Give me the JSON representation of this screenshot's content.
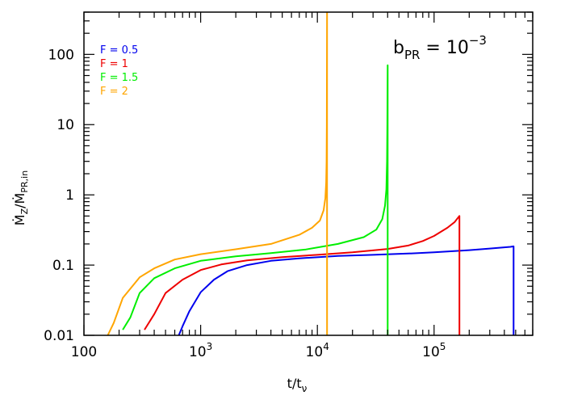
{
  "chart_data": {
    "type": "line",
    "xscale": "log",
    "yscale": "log",
    "xlim": [
      100,
      700000
    ],
    "ylim": [
      0.01,
      400
    ],
    "xlabel": {
      "base": "t/t",
      "sub": "ν"
    },
    "ylabel": {
      "base": "Ṁ",
      "sub1": "Z",
      "mid": "/Ṁ",
      "sub2": "PR,in"
    },
    "annotation": {
      "base": "b",
      "sub": "PR",
      "eq": " = 10",
      "sup": "−3"
    },
    "grid": false,
    "legend_position": "top-left",
    "x_ticks": [
      {
        "value": 100,
        "base": "100",
        "exp": ""
      },
      {
        "value": 1000,
        "base": "10",
        "exp": "3"
      },
      {
        "value": 10000,
        "base": "10",
        "exp": "4"
      },
      {
        "value": 100000,
        "base": "10",
        "exp": "5"
      }
    ],
    "y_ticks": [
      {
        "value": 0.01,
        "label": "0.01"
      },
      {
        "value": 0.1,
        "label": "0.1"
      },
      {
        "value": 1,
        "label": "1"
      },
      {
        "value": 10,
        "label": "10"
      },
      {
        "value": 100,
        "label": "100"
      }
    ],
    "series": [
      {
        "name": "F = 0.5",
        "color": "#0000ee",
        "points": [
          [
            650,
            0.01
          ],
          [
            700,
            0.0135
          ],
          [
            800,
            0.022
          ],
          [
            1000,
            0.041
          ],
          [
            1300,
            0.062
          ],
          [
            1700,
            0.082
          ],
          [
            2500,
            0.1
          ],
          [
            4000,
            0.115
          ],
          [
            7000,
            0.125
          ],
          [
            15000,
            0.135
          ],
          [
            30000,
            0.14
          ],
          [
            60000,
            0.146
          ],
          [
            100000,
            0.152
          ],
          [
            200000,
            0.163
          ],
          [
            300000,
            0.172
          ],
          [
            450000,
            0.182
          ],
          [
            480000,
            0.185
          ],
          [
            480000,
            0.01
          ]
        ]
      },
      {
        "name": "F = 1",
        "color": "#ee0000",
        "points": [
          [
            330,
            0.012
          ],
          [
            400,
            0.02
          ],
          [
            500,
            0.04
          ],
          [
            700,
            0.062
          ],
          [
            1000,
            0.085
          ],
          [
            1500,
            0.102
          ],
          [
            2500,
            0.117
          ],
          [
            5000,
            0.13
          ],
          [
            10000,
            0.14
          ],
          [
            20000,
            0.152
          ],
          [
            40000,
            0.17
          ],
          [
            60000,
            0.19
          ],
          [
            80000,
            0.22
          ],
          [
            100000,
            0.26
          ],
          [
            130000,
            0.34
          ],
          [
            150000,
            0.41
          ],
          [
            165000,
            0.5
          ],
          [
            165000,
            0.01
          ]
        ]
      },
      {
        "name": "F = 1.5",
        "color": "#00ee00",
        "points": [
          [
            215,
            0.012
          ],
          [
            250,
            0.018
          ],
          [
            300,
            0.04
          ],
          [
            400,
            0.065
          ],
          [
            600,
            0.09
          ],
          [
            1000,
            0.115
          ],
          [
            2000,
            0.133
          ],
          [
            4000,
            0.148
          ],
          [
            8000,
            0.167
          ],
          [
            15000,
            0.2
          ],
          [
            25000,
            0.25
          ],
          [
            32000,
            0.32
          ],
          [
            36000,
            0.45
          ],
          [
            38000,
            0.7
          ],
          [
            39000,
            1.2
          ],
          [
            39500,
            3
          ],
          [
            39800,
            10
          ],
          [
            40000,
            70
          ],
          [
            40000,
            0.01
          ]
        ]
      },
      {
        "name": "F = 2",
        "color": "#ffa500",
        "points": [
          [
            160,
            0.01
          ],
          [
            180,
            0.015
          ],
          [
            215,
            0.034
          ],
          [
            300,
            0.067
          ],
          [
            400,
            0.09
          ],
          [
            600,
            0.12
          ],
          [
            1000,
            0.143
          ],
          [
            2000,
            0.168
          ],
          [
            4000,
            0.2
          ],
          [
            7000,
            0.27
          ],
          [
            9000,
            0.34
          ],
          [
            10500,
            0.43
          ],
          [
            11300,
            0.6
          ],
          [
            11700,
            0.9
          ],
          [
            11900,
            1.5
          ],
          [
            12000,
            3
          ],
          [
            12050,
            10
          ],
          [
            12100,
            400
          ],
          [
            12100,
            0.01
          ]
        ]
      }
    ]
  }
}
